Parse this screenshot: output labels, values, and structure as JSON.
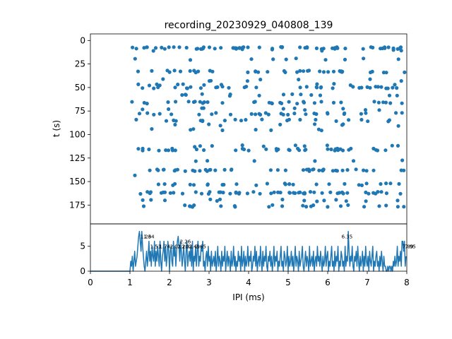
{
  "figure": {
    "title": "recording_20230929_040808_139"
  },
  "colors": {
    "series": "#1f77b4",
    "axes": "#000000",
    "background": "#ffffff"
  },
  "chart_data": [
    {
      "type": "scatter",
      "title": "recording_20230929_040808_139",
      "xlabel": "",
      "ylabel": "t (s)",
      "xlim": [
        0,
        8
      ],
      "ylim": [
        195,
        -7
      ],
      "y_inverted": true,
      "yticks": [
        0,
        25,
        50,
        75,
        100,
        125,
        150,
        175
      ],
      "x_ticks_shown": false,
      "grid": false,
      "seed": 20230929,
      "rows": [
        {
          "t": 8,
          "xmin": 1.05,
          "xmax": 7.95,
          "n": 62
        },
        {
          "t": 10,
          "xmin": 1.05,
          "xmax": 7.95,
          "n": 6
        },
        {
          "t": 20,
          "xmin": 1.1,
          "xmax": 7.9,
          "n": 10
        },
        {
          "t": 33,
          "xmin": 1.05,
          "xmax": 7.95,
          "n": 38
        },
        {
          "t": 42,
          "xmin": 1.2,
          "xmax": 7.9,
          "n": 8
        },
        {
          "t": 47,
          "xmin": 1.1,
          "xmax": 7.95,
          "n": 12
        },
        {
          "t": 50,
          "xmin": 1.05,
          "xmax": 7.95,
          "n": 34
        },
        {
          "t": 58,
          "xmin": 1.1,
          "xmax": 7.95,
          "n": 14
        },
        {
          "t": 66,
          "xmin": 1.05,
          "xmax": 7.95,
          "n": 34
        },
        {
          "t": 73,
          "xmin": 1.1,
          "xmax": 7.9,
          "n": 10
        },
        {
          "t": 78,
          "xmin": 1.2,
          "xmax": 7.9,
          "n": 30
        },
        {
          "t": 85,
          "xmin": 1.1,
          "xmax": 7.95,
          "n": 22
        },
        {
          "t": 90,
          "xmin": 1.2,
          "xmax": 7.9,
          "n": 8
        },
        {
          "t": 95,
          "xmin": 1.3,
          "xmax": 7.6,
          "n": 8
        },
        {
          "t": 112,
          "xmin": 1.3,
          "xmax": 7.95,
          "n": 10
        },
        {
          "t": 116,
          "xmin": 1.2,
          "xmax": 7.95,
          "n": 40
        },
        {
          "t": 128,
          "xmin": 1.5,
          "xmax": 7.9,
          "n": 6
        },
        {
          "t": 138,
          "xmin": 1.4,
          "xmax": 7.95,
          "n": 46
        },
        {
          "t": 144,
          "xmin": 1.0,
          "xmax": 1.2,
          "n": 1
        },
        {
          "t": 153,
          "xmin": 1.5,
          "xmax": 7.9,
          "n": 28
        },
        {
          "t": 162,
          "xmin": 1.2,
          "xmax": 7.95,
          "n": 56
        },
        {
          "t": 170,
          "xmin": 1.3,
          "xmax": 7.9,
          "n": 14
        },
        {
          "t": 176,
          "xmin": 1.3,
          "xmax": 7.95,
          "n": 24
        }
      ]
    },
    {
      "type": "line",
      "xlabel": "IPI (ms)",
      "ylabel": "",
      "xlim": [
        0,
        8
      ],
      "ylim": [
        0,
        9.5
      ],
      "xticks": [
        0,
        1,
        2,
        3,
        4,
        5,
        6,
        7,
        8
      ],
      "yticks": [
        0,
        5
      ],
      "grid": false,
      "x_start": 0,
      "dx": 0.02,
      "y": [
        0,
        0,
        0,
        0,
        0,
        0,
        0,
        0,
        0,
        0,
        0,
        0,
        0,
        0,
        0,
        0,
        0,
        0,
        0,
        0,
        0,
        0,
        0,
        0,
        0,
        0,
        0,
        0,
        0,
        0,
        0,
        0,
        0,
        0,
        0,
        0,
        0,
        0,
        0,
        0,
        0,
        0,
        0,
        0,
        0,
        0,
        0,
        0,
        0,
        0,
        0,
        2,
        1,
        3,
        0,
        2,
        4,
        1,
        2,
        3,
        5,
        7,
        8,
        6,
        4,
        8,
        5,
        3,
        1,
        0,
        2,
        4,
        1,
        3,
        6,
        2,
        4,
        1,
        5,
        3,
        2,
        6,
        1,
        4,
        2,
        5,
        3,
        1,
        6,
        2,
        0,
        3,
        4,
        6,
        2,
        5,
        1,
        3,
        6,
        4,
        0,
        4,
        5,
        2,
        1,
        6,
        3,
        5,
        1,
        4,
        6,
        7,
        5,
        2,
        6,
        4,
        1,
        3,
        5,
        2,
        0,
        4,
        6,
        1,
        3,
        4,
        2,
        5,
        1,
        6,
        0,
        3,
        2,
        5,
        1,
        4,
        6,
        1,
        3,
        2,
        5,
        4,
        6,
        1,
        2,
        0,
        3,
        4,
        1,
        5,
        2,
        3,
        0,
        4,
        1,
        2,
        3,
        1,
        4,
        0,
        2,
        5,
        1,
        3,
        2,
        0,
        4,
        1,
        3,
        2,
        5,
        0,
        2,
        4,
        1,
        3,
        2,
        0,
        4,
        1,
        2,
        5,
        1,
        3,
        0,
        2,
        1,
        4,
        2,
        3,
        0,
        5,
        1,
        2,
        4,
        0,
        3,
        1,
        2,
        5,
        1,
        3,
        2,
        4,
        0,
        1,
        3,
        2,
        5,
        1,
        4,
        0,
        2,
        3,
        1,
        5,
        2,
        0,
        4,
        1,
        3,
        2,
        5,
        1,
        0,
        3,
        2,
        4,
        1,
        3,
        0,
        2,
        5,
        1,
        3,
        2,
        4,
        0,
        2,
        1,
        3,
        5,
        1,
        2,
        0,
        4,
        3,
        1,
        2,
        5,
        0,
        3,
        1,
        2,
        4,
        1,
        3,
        0,
        2,
        5,
        1,
        3,
        2,
        0,
        4,
        1,
        2,
        3,
        5,
        1,
        0,
        2,
        4,
        1,
        3,
        2,
        0,
        5,
        1,
        2,
        3,
        1,
        4,
        0,
        2,
        3,
        1,
        5,
        2,
        3,
        1,
        4,
        2,
        0,
        3,
        1,
        2,
        5,
        1,
        3,
        4,
        0,
        2,
        1,
        3,
        5,
        1,
        2,
        0,
        4,
        1,
        3,
        2,
        5,
        0,
        2,
        1,
        4,
        3,
        1,
        2,
        0,
        5,
        1,
        3,
        2,
        8,
        4,
        1,
        3,
        2,
        5,
        1,
        0,
        3,
        2,
        4,
        1,
        5,
        2,
        0,
        3,
        1,
        2,
        4,
        0,
        3,
        1,
        5,
        2,
        1,
        3,
        0,
        4,
        2,
        1,
        3,
        5,
        0,
        2,
        1,
        3,
        4,
        1,
        2,
        0,
        3,
        1,
        4,
        2,
        0,
        3,
        1,
        1,
        0,
        0,
        1,
        0,
        1,
        1,
        0,
        1,
        0,
        2,
        1,
        3,
        1,
        2,
        5,
        1,
        3,
        2,
        4,
        1,
        6,
        6,
        4,
        6,
        1,
        3
      ],
      "peak_labels": [
        {
          "x": 1.26,
          "y": 8,
          "label": "1.26"
        },
        {
          "x": 1.34,
          "y": 8,
          "label": "1.34"
        },
        {
          "x": 1.51,
          "y": 6,
          "label": "1.51"
        },
        {
          "x": 1.74,
          "y": 6,
          "label": "1.74"
        },
        {
          "x": 2.01,
          "y": 6,
          "label": "2.01"
        },
        {
          "x": 2.2,
          "y": 6,
          "label": "2.20"
        },
        {
          "x": 2.26,
          "y": 7,
          "label": "2.26"
        },
        {
          "x": 2.31,
          "y": 6,
          "label": "2.31"
        },
        {
          "x": 2.49,
          "y": 6,
          "label": "2.49"
        },
        {
          "x": 2.65,
          "y": 6,
          "label": "2.65"
        },
        {
          "x": 6.35,
          "y": 8,
          "label": "6.35"
        },
        {
          "x": 7.89,
          "y": 6,
          "label": "7.89"
        },
        {
          "x": 7.95,
          "y": 6,
          "label": "7.95"
        }
      ]
    }
  ]
}
